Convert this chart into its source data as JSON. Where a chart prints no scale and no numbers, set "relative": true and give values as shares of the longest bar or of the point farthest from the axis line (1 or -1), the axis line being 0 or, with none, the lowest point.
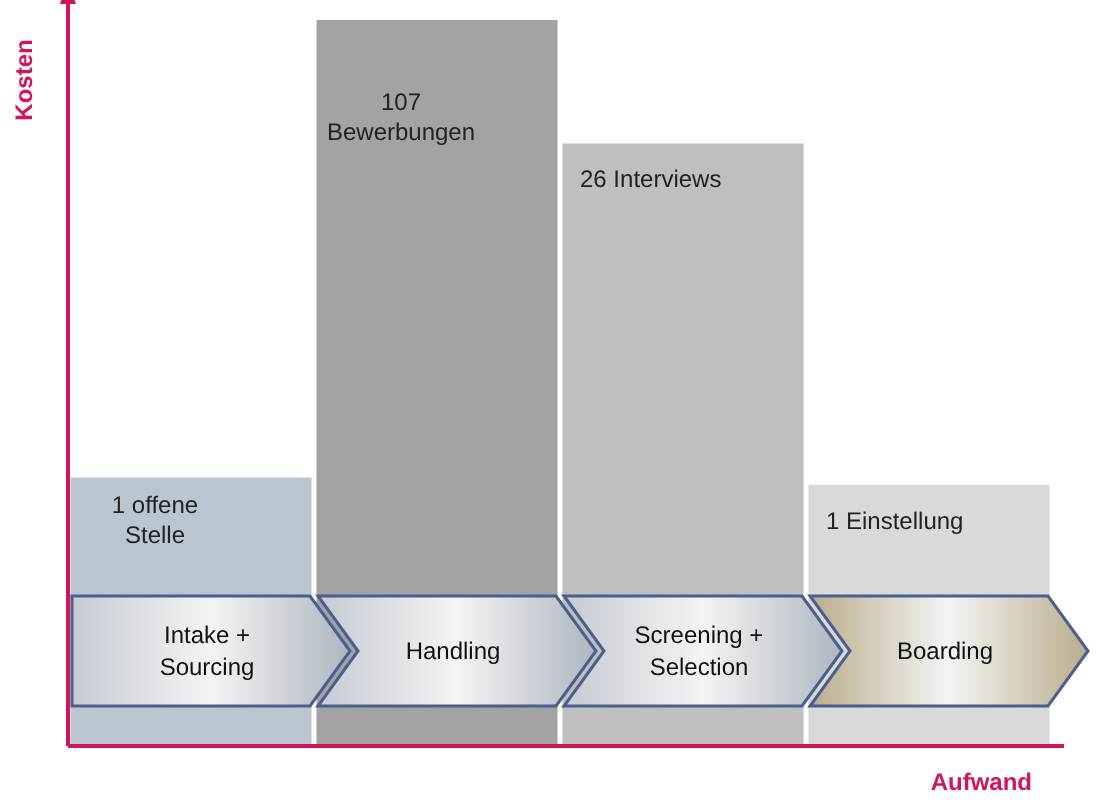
{
  "chart_data": {
    "type": "bar",
    "relative": true,
    "categories": [
      "Intake + Sourcing",
      "Handling",
      "Screening + Selection",
      "Boarding"
    ],
    "values": [
      0.37,
      1,
      0.83,
      0.36
    ],
    "colors": [
      "#b9c6cf",
      "#a3a3a3",
      "#bfbfbf",
      "#d9d9d9"
    ],
    "annotations": [
      {
        "text": "1 offene\nStelle",
        "x": "Intake + Sourcing",
        "y": 0.37
      },
      {
        "text": "107\nBewerbungen",
        "x": "Handling",
        "y": 1
      },
      {
        "text": "26 Interviews",
        "x": "Screening + Selection",
        "y": 0.83
      },
      {
        "text": "1 Einstellung",
        "x": "Boarding",
        "y": 0.36
      }
    ],
    "xlabel": "Aufwand",
    "ylabel": "Kosten",
    "legend": false
  }
}
